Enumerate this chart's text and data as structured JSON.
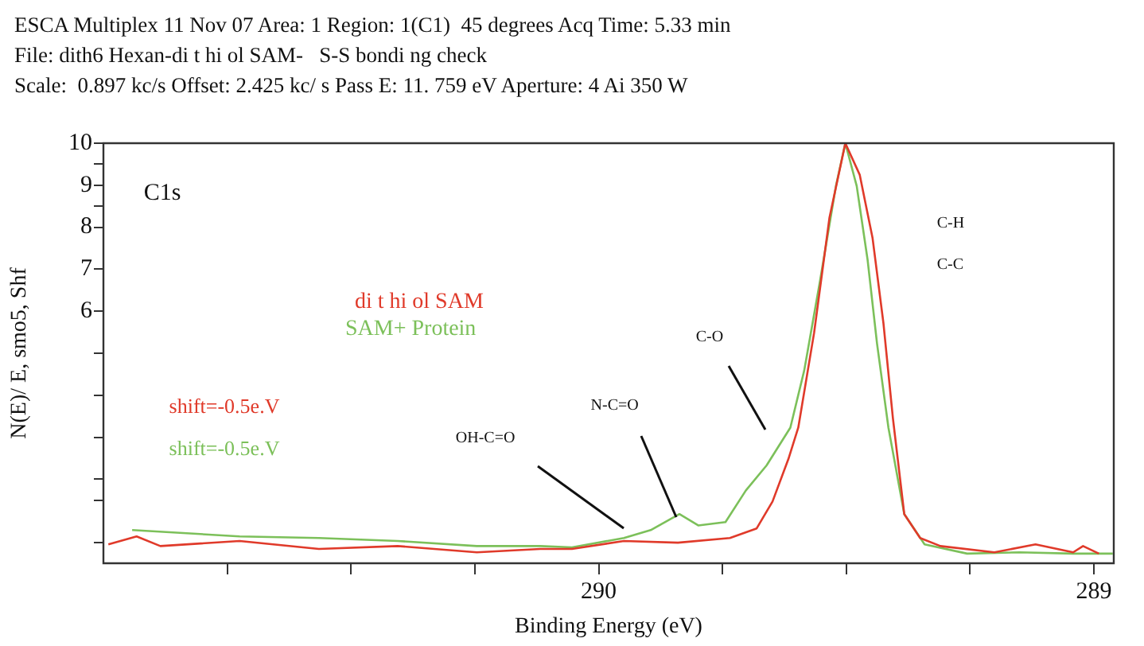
{
  "chart_data": {
    "type": "line",
    "title": "ESCA Multiplex 11 Nov 07 Area: 1 Region: 1(C1)  45 degrees Acq Time: 5.33 min",
    "subtitle": "File: dith6 Hexan-di t hi ol SAM-   S-S bondi ng check\nScale:  0.897 kc/s Offset: 2.425 kc/ s Pass E: 11. 759 eV Aperture: 4 Ai 350 W",
    "xlabel": "Binding Energy (eV)",
    "ylabel": "N(E)/ E, smo5, Shf",
    "xlim": [
      291,
      288.96
    ],
    "ylim": [
      0,
      10
    ],
    "xticks": [
      {
        "value": 290.75,
        "label": null
      },
      {
        "value": 290.5,
        "label": null
      },
      {
        "value": 290.25,
        "label": null
      },
      290,
      {
        "value": 289.75,
        "label": null
      },
      {
        "value": 289.5,
        "label": null
      },
      {
        "value": 289.25,
        "label": null
      },
      289
    ],
    "yticks": [
      {
        "value": 0.5,
        "label": null
      },
      {
        "value": 1.5,
        "label": null
      },
      {
        "value": 2,
        "label": null
      },
      {
        "value": 3,
        "label": null
      },
      {
        "value": 4,
        "label": null
      },
      {
        "value": 5,
        "label": null
      },
      6,
      7,
      8,
      {
        "value": 8.5,
        "label": null
      },
      9,
      {
        "value": 9.5,
        "label": null
      },
      10
    ],
    "series": [
      {
        "name": "di t hi ol SAM",
        "color": "#e03a2a",
        "x": [
          290.99,
          290.933,
          290.885,
          290.725,
          290.565,
          290.406,
          290.246,
          290.118,
          290.054,
          289.949,
          289.84,
          289.735,
          289.681,
          289.649,
          289.617,
          289.597,
          289.565,
          289.534,
          289.502,
          289.473,
          289.447,
          289.425,
          289.406,
          289.383,
          289.351,
          289.31,
          289.201,
          289.118,
          289.042,
          289.022,
          288.99
        ],
        "values": [
          0.45,
          0.64,
          0.41,
          0.53,
          0.34,
          0.41,
          0.26,
          0.34,
          0.34,
          0.53,
          0.49,
          0.6,
          0.83,
          1.47,
          2.48,
          3.23,
          5.49,
          8.23,
          10,
          9.25,
          7.74,
          5.71,
          3.46,
          1.17,
          0.6,
          0.41,
          0.26,
          0.45,
          0.26,
          0.41,
          0.23
        ]
      },
      {
        "name": "SAM+ Protein",
        "color": "#7cc05a",
        "x": [
          290.942,
          290.725,
          290.565,
          290.406,
          290.246,
          290.118,
          290.054,
          289.949,
          289.895,
          289.837,
          289.799,
          289.744,
          289.703,
          289.661,
          289.613,
          289.585,
          289.553,
          289.521,
          289.502,
          289.479,
          289.457,
          289.438,
          289.415,
          289.383,
          289.342,
          289.256,
          289.15,
          289.042,
          288.962
        ],
        "values": [
          0.79,
          0.64,
          0.6,
          0.53,
          0.41,
          0.41,
          0.38,
          0.6,
          0.79,
          1.17,
          0.9,
          0.98,
          1.73,
          2.33,
          3.23,
          4.59,
          6.73,
          8.98,
          10,
          8.98,
          7.22,
          5.23,
          3.23,
          1.17,
          0.45,
          0.23,
          0.26,
          0.23,
          0.23
        ]
      }
    ],
    "annotations": [
      "C1s",
      "shift=-0.5e.V",
      "shift=-0.5e.V",
      "OH-C=O",
      "N-C=O",
      "C-O",
      "C-H",
      "C-C"
    ]
  }
}
